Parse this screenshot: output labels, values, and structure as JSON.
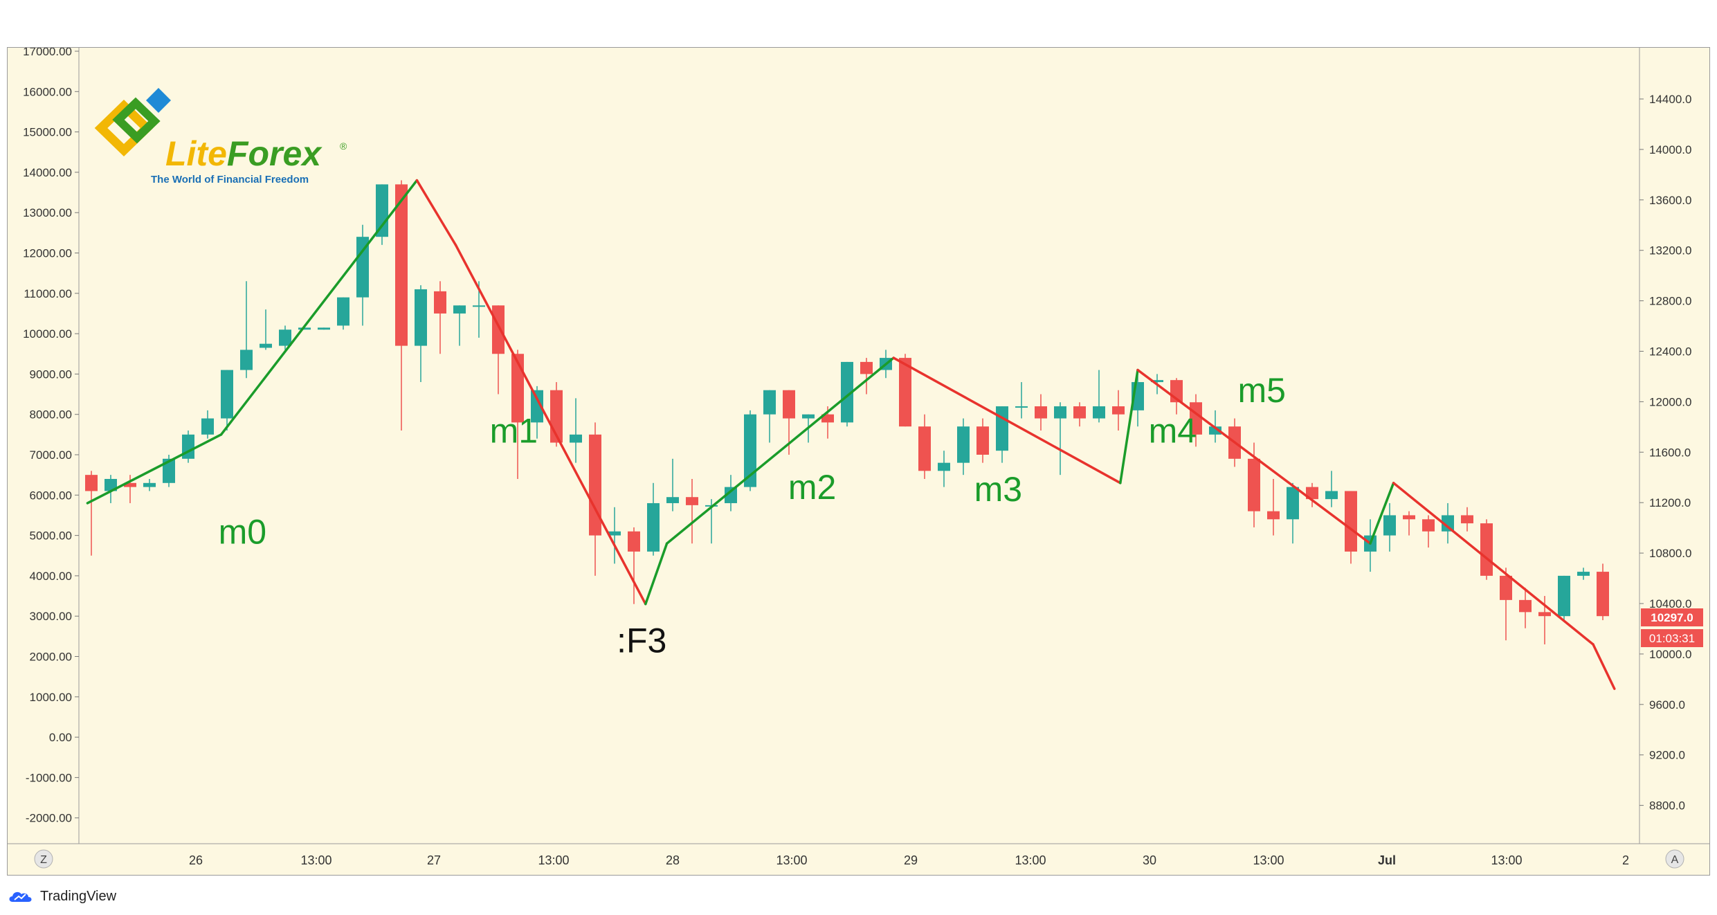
{
  "logo": {
    "name": "LiteForex",
    "name_part1": "Lite",
    "name_part2": "Forex",
    "registered": "®",
    "tagline": "The World of Financial Freedom"
  },
  "footer": {
    "brand": "TradingView",
    "icon": "tradingview-cloud-icon"
  },
  "colors": {
    "background": "#fdf8e1",
    "bull": "#26a69a",
    "bear": "#ef5350",
    "up_line": "#1a9c2a",
    "down_line": "#e8332d",
    "label_green": "#1a9c2a",
    "axis_text": "#333333",
    "price_tag": "#ef5350"
  },
  "chart_data": {
    "type": "candlestick",
    "left_axis": {
      "ticks": [
        "17000.00",
        "16000.00",
        "15000.00",
        "14000.00",
        "13000.00",
        "12000.00",
        "11000.00",
        "10000.00",
        "9000.00",
        "8000.00",
        "7000.00",
        "6000.00",
        "5000.00",
        "4000.00",
        "3000.00",
        "2000.00",
        "1000.00",
        "0.00",
        "-1000.00",
        "-2000.00"
      ],
      "range": [
        -2000,
        17000
      ]
    },
    "right_axis": {
      "ticks": [
        "14400.0",
        "14000.0",
        "13600.0",
        "13200.0",
        "12800.0",
        "12400.0",
        "12000.0",
        "11600.0",
        "11200.0",
        "10800.0",
        "10400.0",
        "10000.0",
        "9600.0",
        "9200.0",
        "8800.0"
      ],
      "range": [
        8800,
        14400
      ]
    },
    "x_axis": {
      "labels": [
        "26",
        "13:00",
        "27",
        "13:00",
        "28",
        "13:00",
        "29",
        "13:00",
        "30",
        "13:00",
        "Jul",
        "13:00",
        "2"
      ],
      "bold": [
        false,
        false,
        false,
        false,
        false,
        false,
        false,
        false,
        false,
        false,
        true,
        false,
        false
      ]
    },
    "corner_buttons": {
      "left": "Z",
      "right": "A"
    },
    "last_price": "10297.0",
    "countdown": "01:03:31",
    "candles": [
      {
        "o": 6500,
        "h": 6600,
        "l": 4500,
        "c": 6100
      },
      {
        "o": 6100,
        "h": 6500,
        "l": 5800,
        "c": 6400
      },
      {
        "o": 6300,
        "h": 6500,
        "l": 5800,
        "c": 6200
      },
      {
        "o": 6200,
        "h": 6400,
        "l": 6100,
        "c": 6300
      },
      {
        "o": 6300,
        "h": 7000,
        "l": 6200,
        "c": 6900
      },
      {
        "o": 6900,
        "h": 7600,
        "l": 6800,
        "c": 7500
      },
      {
        "o": 7500,
        "h": 8100,
        "l": 7400,
        "c": 7900
      },
      {
        "o": 7900,
        "h": 9100,
        "l": 7600,
        "c": 9100
      },
      {
        "o": 9100,
        "h": 11300,
        "l": 8900,
        "c": 9600
      },
      {
        "o": 9650,
        "h": 10600,
        "l": 9600,
        "c": 9750
      },
      {
        "o": 9700,
        "h": 10200,
        "l": 9600,
        "c": 10100
      },
      {
        "o": 10100,
        "h": 10150,
        "l": 10100,
        "c": 10150
      },
      {
        "o": 10100,
        "h": 10150,
        "l": 10100,
        "c": 10150
      },
      {
        "o": 10200,
        "h": 10900,
        "l": 10100,
        "c": 10900
      },
      {
        "o": 10900,
        "h": 12700,
        "l": 10200,
        "c": 12400
      },
      {
        "o": 12400,
        "h": 13700,
        "l": 12200,
        "c": 13700
      },
      {
        "o": 13700,
        "h": 13800,
        "l": 7600,
        "c": 9700
      },
      {
        "o": 9700,
        "h": 11200,
        "l": 8800,
        "c": 11100
      },
      {
        "o": 11050,
        "h": 11300,
        "l": 9500,
        "c": 10500
      },
      {
        "o": 10500,
        "h": 10700,
        "l": 9700,
        "c": 10700
      },
      {
        "o": 10700,
        "h": 11300,
        "l": 9900,
        "c": 10700
      },
      {
        "o": 10700,
        "h": 10700,
        "l": 8500,
        "c": 9500
      },
      {
        "o": 9500,
        "h": 9600,
        "l": 6400,
        "c": 7800
      },
      {
        "o": 7800,
        "h": 8700,
        "l": 7400,
        "c": 8600
      },
      {
        "o": 8600,
        "h": 8800,
        "l": 7200,
        "c": 7300
      },
      {
        "o": 7300,
        "h": 8400,
        "l": 6800,
        "c": 7500
      },
      {
        "o": 7500,
        "h": 7800,
        "l": 4000,
        "c": 5000
      },
      {
        "o": 5000,
        "h": 5700,
        "l": 4300,
        "c": 5100
      },
      {
        "o": 5100,
        "h": 5200,
        "l": 3300,
        "c": 4600
      },
      {
        "o": 4600,
        "h": 6300,
        "l": 4500,
        "c": 5800
      },
      {
        "o": 5800,
        "h": 6900,
        "l": 5600,
        "c": 5950
      },
      {
        "o": 5950,
        "h": 6400,
        "l": 4800,
        "c": 5750
      },
      {
        "o": 5750,
        "h": 5900,
        "l": 4800,
        "c": 5750
      },
      {
        "o": 5800,
        "h": 6500,
        "l": 5600,
        "c": 6200
      },
      {
        "o": 6200,
        "h": 8100,
        "l": 6100,
        "c": 8000
      },
      {
        "o": 8000,
        "h": 8600,
        "l": 7300,
        "c": 8600
      },
      {
        "o": 8600,
        "h": 8600,
        "l": 7000,
        "c": 7900
      },
      {
        "o": 7900,
        "h": 8000,
        "l": 7300,
        "c": 8000
      },
      {
        "o": 8000,
        "h": 8200,
        "l": 7400,
        "c": 7800
      },
      {
        "o": 7800,
        "h": 9300,
        "l": 7700,
        "c": 9300
      },
      {
        "o": 9300,
        "h": 9400,
        "l": 8500,
        "c": 9000
      },
      {
        "o": 9100,
        "h": 9600,
        "l": 8900,
        "c": 9400
      },
      {
        "o": 9400,
        "h": 9500,
        "l": 7700,
        "c": 7700
      },
      {
        "o": 7700,
        "h": 8000,
        "l": 6400,
        "c": 6600
      },
      {
        "o": 6600,
        "h": 7100,
        "l": 6200,
        "c": 6800
      },
      {
        "o": 6800,
        "h": 7900,
        "l": 6500,
        "c": 7700
      },
      {
        "o": 7700,
        "h": 7900,
        "l": 6800,
        "c": 7000
      },
      {
        "o": 7100,
        "h": 8200,
        "l": 6800,
        "c": 8200
      },
      {
        "o": 8200,
        "h": 8800,
        "l": 7900,
        "c": 8200
      },
      {
        "o": 8200,
        "h": 8500,
        "l": 7600,
        "c": 7900
      },
      {
        "o": 7900,
        "h": 8300,
        "l": 6500,
        "c": 8200
      },
      {
        "o": 8200,
        "h": 8300,
        "l": 7700,
        "c": 7900
      },
      {
        "o": 7900,
        "h": 9100,
        "l": 7800,
        "c": 8200
      },
      {
        "o": 8200,
        "h": 8600,
        "l": 7600,
        "c": 8000
      },
      {
        "o": 8100,
        "h": 9100,
        "l": 7700,
        "c": 8800
      },
      {
        "o": 8800,
        "h": 9000,
        "l": 8500,
        "c": 8850
      },
      {
        "o": 8850,
        "h": 8900,
        "l": 8000,
        "c": 8300
      },
      {
        "o": 8300,
        "h": 8500,
        "l": 7200,
        "c": 7500
      },
      {
        "o": 7500,
        "h": 8100,
        "l": 7300,
        "c": 7700
      },
      {
        "o": 7700,
        "h": 7900,
        "l": 6700,
        "c": 6900
      },
      {
        "o": 6900,
        "h": 7300,
        "l": 5200,
        "c": 5600
      },
      {
        "o": 5600,
        "h": 6400,
        "l": 5000,
        "c": 5400
      },
      {
        "o": 5400,
        "h": 6300,
        "l": 4800,
        "c": 6200
      },
      {
        "o": 6200,
        "h": 6300,
        "l": 5700,
        "c": 5900
      },
      {
        "o": 5900,
        "h": 6600,
        "l": 5700,
        "c": 6100
      },
      {
        "o": 6100,
        "h": 6100,
        "l": 4300,
        "c": 4600
      },
      {
        "o": 4600,
        "h": 5400,
        "l": 4100,
        "c": 5000
      },
      {
        "o": 5000,
        "h": 5800,
        "l": 4600,
        "c": 5500
      },
      {
        "o": 5500,
        "h": 5600,
        "l": 5000,
        "c": 5400
      },
      {
        "o": 5400,
        "h": 5500,
        "l": 4700,
        "c": 5100
      },
      {
        "o": 5100,
        "h": 5800,
        "l": 4800,
        "c": 5500
      },
      {
        "o": 5500,
        "h": 5700,
        "l": 5100,
        "c": 5300
      },
      {
        "o": 5300,
        "h": 5400,
        "l": 3900,
        "c": 4000
      },
      {
        "o": 4000,
        "h": 4200,
        "l": 2400,
        "c": 3400
      },
      {
        "o": 3400,
        "h": 3700,
        "l": 2700,
        "c": 3100
      },
      {
        "o": 3100,
        "h": 3500,
        "l": 2300,
        "c": 3000
      },
      {
        "o": 3000,
        "h": 4000,
        "l": 2900,
        "c": 4000
      },
      {
        "o": 4000,
        "h": 4200,
        "l": 3900,
        "c": 4100
      },
      {
        "o": 4100,
        "h": 4300,
        "l": 2900,
        "c": 3000
      }
    ],
    "zigzag": [
      {
        "i": -0.2,
        "p": 5800,
        "dir": "up"
      },
      {
        "i": 6.7,
        "p": 7500,
        "dir": "up"
      },
      {
        "i": 16.8,
        "p": 13800,
        "dir": "down"
      },
      {
        "i": 18.8,
        "p": 12200,
        "dir": "down"
      },
      {
        "i": 28.6,
        "p": 3300,
        "dir": "up"
      },
      {
        "i": 29.7,
        "p": 4800,
        "dir": "up"
      },
      {
        "i": 41.4,
        "p": 9400,
        "dir": "down"
      },
      {
        "i": 53.1,
        "p": 6300,
        "dir": "up"
      },
      {
        "i": 54.0,
        "p": 9100,
        "dir": "down"
      },
      {
        "i": 66.0,
        "p": 4800,
        "dir": "up"
      },
      {
        "i": 67.2,
        "p": 6300,
        "dir": "down"
      },
      {
        "i": 77.5,
        "p": 2300,
        "dir": "down"
      },
      {
        "i": 78.6,
        "p": 1200,
        "dir": "down"
      }
    ],
    "annotations": [
      {
        "text": "m0",
        "i": 7.8,
        "p": 4800,
        "color": "green"
      },
      {
        "text": "m1",
        "i": 21.8,
        "p": 7300,
        "color": "green"
      },
      {
        "text": "m2",
        "i": 37.2,
        "p": 5900,
        "color": "green"
      },
      {
        "text": "m3",
        "i": 46.8,
        "p": 5850,
        "color": "green"
      },
      {
        "text": "m4",
        "i": 55.8,
        "p": 7300,
        "color": "green"
      },
      {
        "text": "m5",
        "i": 60.4,
        "p": 8300,
        "color": "green"
      },
      {
        "text": ":F3",
        "i": 28.4,
        "p": 2100,
        "color": "black"
      }
    ]
  }
}
